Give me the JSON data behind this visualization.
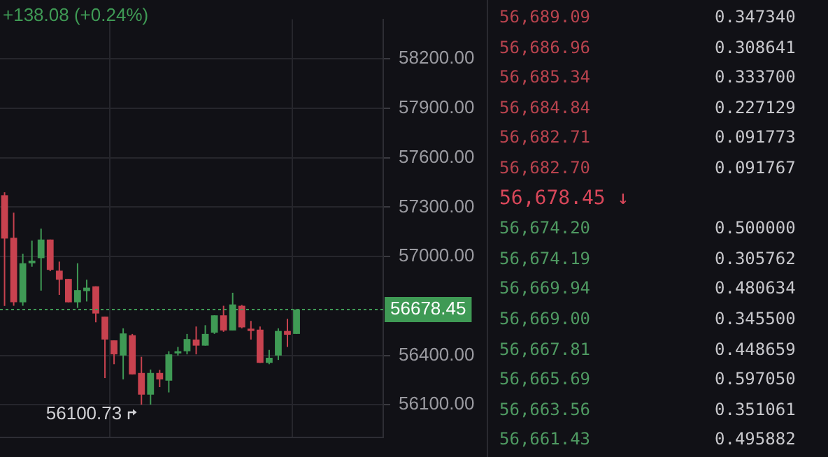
{
  "chart_data": [
    {
      "type": "candlestick",
      "categories": [
        null,
        null,
        null,
        null,
        null,
        null,
        null,
        null,
        null,
        null,
        null,
        null,
        null,
        null,
        null,
        null,
        null,
        null,
        null,
        null,
        null,
        null,
        null,
        null,
        null,
        null,
        null,
        null,
        null,
        null,
        null,
        null,
        null,
        null,
        null,
        null,
        null,
        null,
        null,
        null,
        null,
        null
      ],
      "ohlc": [
        [
          57372,
          57390,
          56700,
          57109
        ],
        [
          57114,
          57266,
          56701,
          56722
        ],
        [
          56722,
          57017,
          56701,
          56959
        ],
        [
          56959,
          57096,
          56938,
          56975
        ],
        [
          56990,
          57169,
          56793,
          57103
        ],
        [
          57103,
          57103,
          56911,
          56919
        ],
        [
          56914,
          56969,
          56767,
          56859
        ],
        [
          56864,
          56864,
          56722,
          56722
        ],
        [
          56722,
          56959,
          56688,
          56796
        ],
        [
          56790,
          56859,
          56727,
          56811
        ],
        [
          56819,
          56819,
          56601,
          56654
        ],
        [
          56635,
          56635,
          56262,
          56496
        ],
        [
          56491,
          56491,
          56346,
          56406
        ],
        [
          56399,
          56564,
          56254,
          56533
        ],
        [
          56522,
          56530,
          56285,
          56285
        ],
        [
          56293,
          56391,
          56100.73,
          56162
        ],
        [
          56162,
          56314,
          56101,
          56293
        ],
        [
          56293,
          56312,
          56207,
          56254
        ],
        [
          56246,
          56425,
          56175,
          56406
        ],
        [
          56412,
          56451,
          56399,
          56425
        ],
        [
          56425,
          56530,
          56406,
          56499
        ],
        [
          56496,
          56575,
          56406,
          56459
        ],
        [
          56459,
          56583,
          56459,
          56530
        ],
        [
          56538,
          56643,
          56530,
          56643
        ],
        [
          56643,
          56701,
          56543,
          56551
        ],
        [
          56551,
          56780,
          56551,
          56709
        ],
        [
          56701,
          56706,
          56564,
          56570
        ],
        [
          56562,
          56609,
          56496,
          56548
        ],
        [
          56556,
          56575,
          56354,
          56354
        ],
        [
          56354,
          56433,
          56346,
          56385
        ],
        [
          56399,
          56564,
          56372,
          56548
        ],
        [
          56548,
          56622,
          56451,
          56525
        ],
        [
          56530,
          56680,
          56530,
          56678.45
        ],
        null,
        null,
        null,
        null,
        null,
        null,
        null,
        null,
        null
      ],
      "colors": [
        "#c8424f",
        "#c8424f",
        "#3f9a55",
        "#3f9a55",
        "#3f9a55",
        "#c8424f",
        "#c8424f",
        "#c8424f",
        "#3f9a55",
        "#3f9a55",
        "#c8424f",
        "#c8424f",
        "#c8424f",
        "#3f9a55",
        "#c8424f",
        "#c8424f",
        "#3f9a55",
        "#c8424f",
        "#3f9a55",
        "#3f9a55",
        "#3f9a55",
        "#c8424f",
        "#3f9a55",
        "#3f9a55",
        "#c8424f",
        "#3f9a55",
        "#c8424f",
        "#c8424f",
        "#c8424f",
        "#3f9a55",
        "#3f9a55",
        "#c8424f",
        "#3f9a55",
        null,
        null,
        null,
        null,
        null,
        null,
        null,
        null,
        null
      ],
      "ylim": [
        55900,
        58440
      ],
      "yticks": [
        {
          "value": 56100,
          "label": "56100.00"
        },
        {
          "value": 56400,
          "label": "56400.00"
        },
        {
          "value": 57000,
          "label": "57000.00"
        },
        {
          "value": 57300,
          "label": "57300.00"
        },
        {
          "value": 57600,
          "label": "57600.00"
        },
        {
          "value": 57900,
          "label": "57900.00"
        },
        {
          "value": 58200,
          "label": "58200.00"
        }
      ],
      "grid": true,
      "tick_labels": "y",
      "ref_lines": [
        {
          "axis": "y",
          "value": 56678.45,
          "label": "56678.45",
          "color": "#3f9a55",
          "line_style": "dotted"
        }
      ],
      "annotations": [
        "+138.08 (+0.24%)",
        "56100.73"
      ]
    },
    {
      "type": "other",
      "categories": [
        "56,689.09",
        "56,686.96",
        "56,685.34",
        "56,684.84",
        "56,682.71",
        "56,682.70",
        "56,678.45 ↓",
        "56,674.20",
        "56,674.19",
        "56,669.94",
        "56,669.00",
        "56,667.81",
        "56,665.69",
        "56,663.56",
        "56,661.43"
      ],
      "value_labels": [
        "0.347340",
        "0.308641",
        "0.333700",
        "0.227129",
        "0.091773",
        "0.091767",
        null,
        "0.500000",
        "0.305762",
        "0.480634",
        "0.345500",
        "0.448659",
        "0.597050",
        "0.351061",
        "0.495882"
      ],
      "colors": [
        "#b8434e",
        "#b8434e",
        "#b8434e",
        "#b8434e",
        "#b8434e",
        "#b8434e",
        "#d9475a",
        "#4f9a62",
        "#4f9a62",
        "#4f9a62",
        "#4f9a62",
        "#4f9a62",
        "#4f9a62",
        "#4f9a62",
        "#4f9a62"
      ]
    }
  ]
}
